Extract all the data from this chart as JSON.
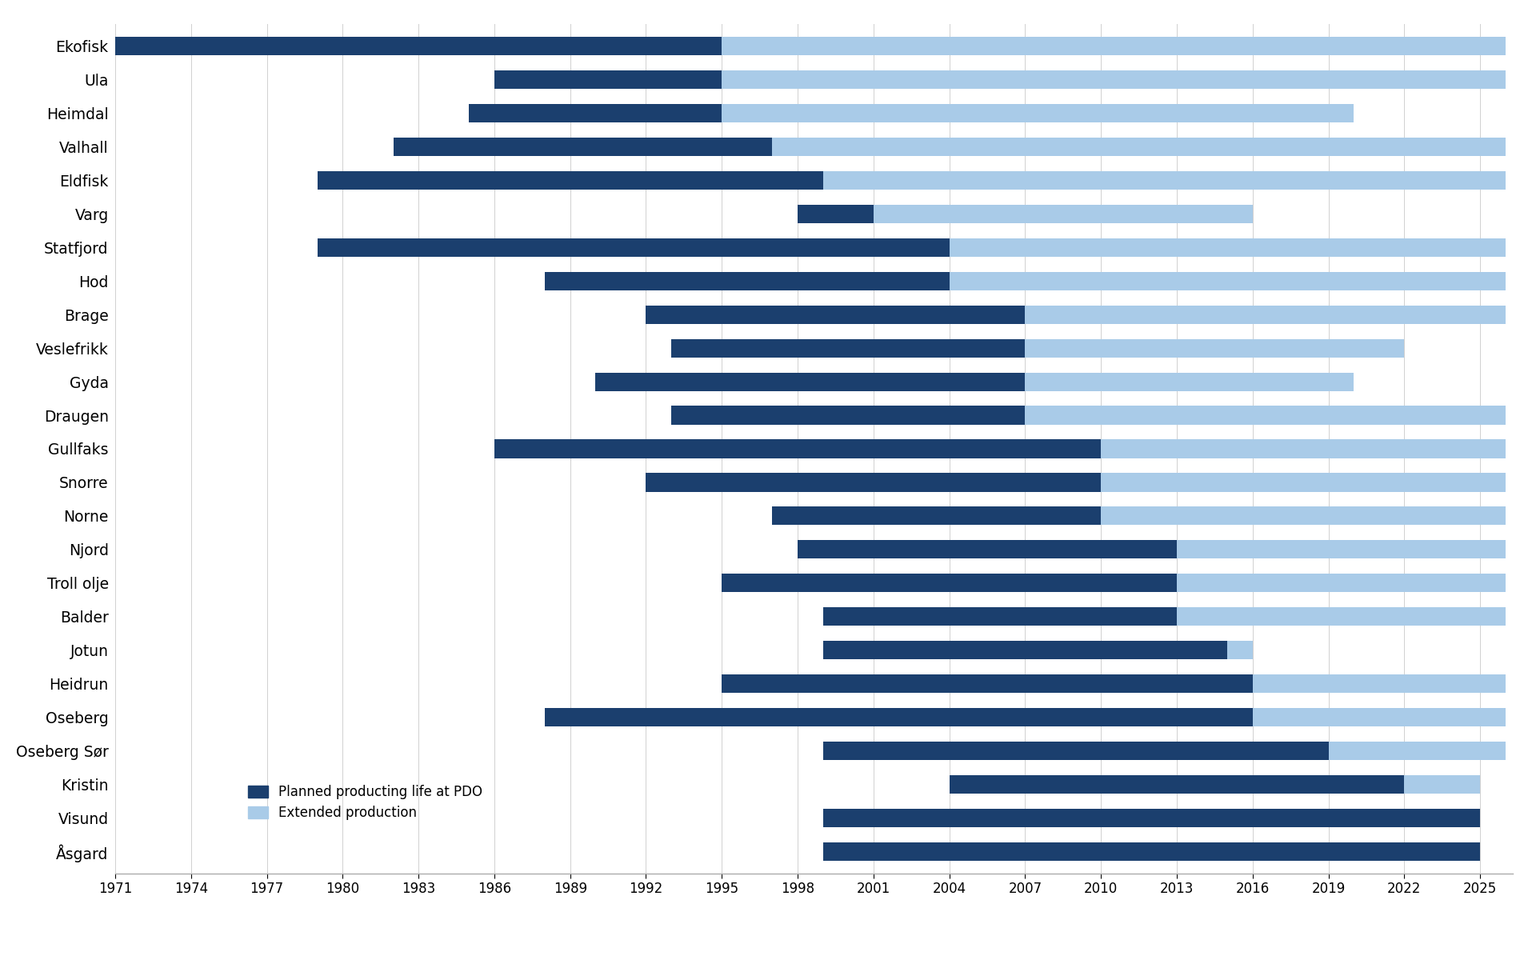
{
  "fields": [
    "Ekofisk",
    "Ula",
    "Heimdal",
    "Valhall",
    "Eldfisk",
    "Varg",
    "Statfjord",
    "Hod",
    "Brage",
    "Veslefrikk",
    "Gyda",
    "Draugen",
    "Gullfaks",
    "Snorre",
    "Norne",
    "Njord",
    "Troll olje",
    "Balder",
    "Jotun",
    "Heidrun",
    "Oseberg",
    "Oseberg Sør",
    "Kristin",
    "Visund",
    "Åsgard"
  ],
  "planned_start": [
    1971,
    1986,
    1985,
    1982,
    1979,
    1998,
    1979,
    1988,
    1992,
    1993,
    1990,
    1993,
    1986,
    1992,
    1997,
    1998,
    1995,
    1999,
    1999,
    1995,
    1988,
    1999,
    2004,
    1999,
    1999
  ],
  "planned_end": [
    1995,
    1995,
    1995,
    1997,
    1999,
    2001,
    2004,
    2004,
    2007,
    2007,
    2007,
    2007,
    2010,
    2010,
    2010,
    2013,
    2013,
    2013,
    2015,
    2016,
    2016,
    2019,
    2022,
    2025,
    2025
  ],
  "extended_end": [
    2026,
    2026,
    2020,
    2026,
    2026,
    2016,
    2026,
    2026,
    2026,
    2022,
    2020,
    2026,
    2026,
    2026,
    2026,
    2026,
    2026,
    2026,
    2016,
    2026,
    2026,
    2026,
    2025,
    2025,
    2025
  ],
  "xmin": 1971,
  "xmax": 2026,
  "xticks": [
    1971,
    1974,
    1977,
    1980,
    1983,
    1986,
    1989,
    1992,
    1995,
    1998,
    2001,
    2004,
    2007,
    2010,
    2013,
    2016,
    2019,
    2022,
    2025
  ],
  "dark_blue": "#1b3f6e",
  "light_blue": "#a9cbe8",
  "bar_height": 0.55,
  "legend_planned": "Planned producting life at PDO",
  "legend_extended": "Extended production",
  "background_color": "#ffffff",
  "figsize": [
    19.2,
    12.0
  ],
  "dpi": 100
}
